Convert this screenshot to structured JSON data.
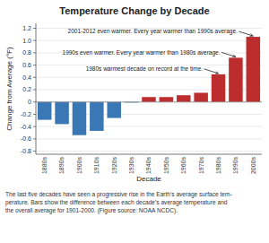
{
  "chart_data": {
    "type": "bar",
    "title": "Temperature Change by Decade",
    "xlabel": "Decade",
    "ylabel": "Change from Average (°F)",
    "categories": [
      "1880s",
      "1890s",
      "1900s",
      "1910s",
      "1920s",
      "1930s",
      "1940s",
      "1950s",
      "1960s",
      "1970s",
      "1980s",
      "1990s",
      "2000s"
    ],
    "values": [
      -0.29,
      -0.36,
      -0.54,
      -0.47,
      -0.26,
      -0.01,
      0.08,
      0.08,
      0.11,
      0.15,
      0.45,
      0.72,
      1.06
    ],
    "colors": [
      "#3a78b5",
      "#3a78b5",
      "#3a78b5",
      "#3a78b5",
      "#3a78b5",
      "#3a78b5",
      "#be2d2d",
      "#be2d2d",
      "#be2d2d",
      "#be2d2d",
      "#be2d2d",
      "#be2d2d",
      "#be2d2d"
    ],
    "ylim": [
      -0.85,
      1.28
    ],
    "yticks": [
      -0.8,
      -0.6,
      -0.4,
      -0.2,
      0,
      0.2,
      0.4,
      0.6,
      0.8,
      {
        "value": 1.0,
        "label": "1.0"
      },
      1.2
    ],
    "grid": true,
    "annotations": [
      {
        "text": "2001-2012 even warmer. Every year warmer than 1990s average.",
        "category": "2000s",
        "value": 1.06
      },
      {
        "text": "1990s even warmer. Every year warmer than 1980s average.",
        "category": "1990s",
        "value": 0.72
      },
      {
        "text": "1980s warmest decade on record at the time.",
        "category": "1980s",
        "value": 0.45
      }
    ],
    "caption": "The last five decades have seen a progressive rise in the Earth's average surface tem-\nperature. Bars show the difference between each decade's average temperature and\nthe overall average for 1901-2000. (Figure source: NOAA NCDC)."
  }
}
